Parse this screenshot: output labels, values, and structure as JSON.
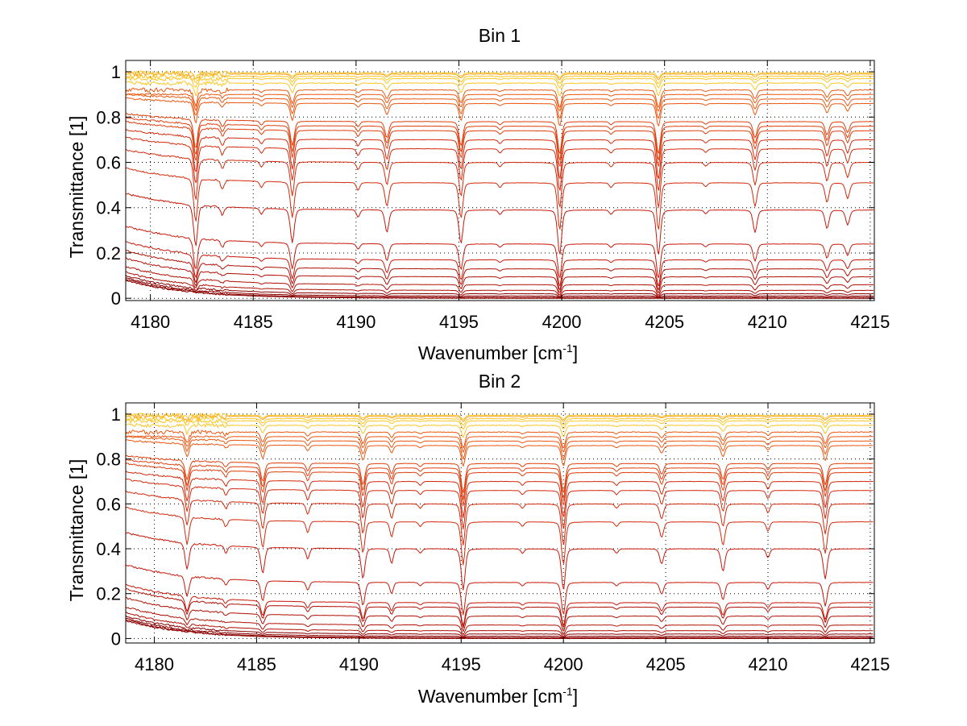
{
  "chart_data": [
    {
      "type": "line",
      "title": "Bin 1",
      "xlabel": "Wavenumber [cm",
      "xlabel_sup": "-1",
      "xlabel_end": "]",
      "ylabel": "Transmittance [1]",
      "xlim": [
        4178.8,
        4215.2
      ],
      "ylim": [
        -0.01,
        1.05
      ],
      "xticks": [
        4180,
        4185,
        4190,
        4195,
        4200,
        4205,
        4210,
        4215
      ],
      "yticks": [
        0,
        0.2,
        0.4,
        0.6,
        0.8,
        1
      ],
      "ytick_labels": [
        "0",
        "0.2",
        "0.4",
        "0.6",
        "0.8",
        "1"
      ],
      "grid": true,
      "series_colors": [
        "#8b0000",
        "#b01005",
        "#c8190a",
        "#d42a0c",
        "#e0400e",
        "#ec5812",
        "#f57a16",
        "#fba21c",
        "#fcc623"
      ],
      "baselines": [
        0.0,
        0.004,
        0.01,
        0.02,
        0.035,
        0.06,
        0.095,
        0.13,
        0.17,
        0.24,
        0.39,
        0.51,
        0.6,
        0.66,
        0.7,
        0.74,
        0.76,
        0.78,
        0.86,
        0.88,
        0.9,
        0.92,
        0.95,
        0.97,
        0.98,
        0.99,
        0.995
      ],
      "absorption_lines": [
        {
          "center": 4182.2,
          "depth": 0.55,
          "width": 0.14
        },
        {
          "center": 4186.9,
          "depth": 0.45,
          "width": 0.14
        },
        {
          "center": 4190.1,
          "depth": 0.1,
          "width": 0.12
        },
        {
          "center": 4191.5,
          "depth": 0.3,
          "width": 0.14
        },
        {
          "center": 4195.1,
          "depth": 0.45,
          "width": 0.14
        },
        {
          "center": 4199.9,
          "depth": 0.6,
          "width": 0.14
        },
        {
          "center": 4204.7,
          "depth": 0.6,
          "width": 0.14
        },
        {
          "center": 4209.4,
          "depth": 0.3,
          "width": 0.14
        },
        {
          "center": 4212.9,
          "depth": 0.25,
          "width": 0.14
        },
        {
          "center": 4213.9,
          "depth": 0.2,
          "width": 0.14
        },
        {
          "center": 4183.5,
          "depth": 0.12,
          "width": 0.12
        },
        {
          "center": 4185.4,
          "depth": 0.08,
          "width": 0.12
        },
        {
          "center": 4197.0,
          "depth": 0.06,
          "width": 0.12
        },
        {
          "center": 4202.4,
          "depth": 0.06,
          "width": 0.12
        },
        {
          "center": 4207.0,
          "depth": 0.05,
          "width": 0.12
        }
      ]
    },
    {
      "type": "line",
      "title": "Bin 2",
      "xlabel": "Wavenumber [cm",
      "xlabel_sup": "-1",
      "xlabel_end": "]",
      "ylabel": "Transmittance [1]",
      "xlim": [
        4178.6,
        4215.2
      ],
      "ylim": [
        -0.02,
        1.05
      ],
      "xticks": [
        4180,
        4185,
        4190,
        4195,
        4200,
        4205,
        4210,
        4215
      ],
      "yticks": [
        0,
        0.2,
        0.4,
        0.6,
        0.8,
        1
      ],
      "ytick_labels": [
        "0",
        "0.2",
        "0.4",
        "0.6",
        "0.8",
        "1"
      ],
      "grid": true,
      "series_colors": [
        "#8b0000",
        "#b01005",
        "#c8190a",
        "#d42a0c",
        "#e0400e",
        "#ec5812",
        "#f57a16",
        "#fba21c",
        "#fcc623"
      ],
      "baselines": [
        0.0,
        0.004,
        0.01,
        0.02,
        0.035,
        0.06,
        0.1,
        0.14,
        0.16,
        0.25,
        0.4,
        0.52,
        0.6,
        0.66,
        0.7,
        0.74,
        0.76,
        0.78,
        0.86,
        0.88,
        0.9,
        0.92,
        0.95,
        0.97,
        0.98,
        0.99,
        0.995
      ],
      "absorption_lines": [
        {
          "center": 4181.6,
          "depth": 0.35,
          "width": 0.14
        },
        {
          "center": 4185.3,
          "depth": 0.35,
          "width": 0.14
        },
        {
          "center": 4187.5,
          "depth": 0.15,
          "width": 0.12
        },
        {
          "center": 4190.2,
          "depth": 0.4,
          "width": 0.14
        },
        {
          "center": 4191.6,
          "depth": 0.2,
          "width": 0.12
        },
        {
          "center": 4195.1,
          "depth": 0.55,
          "width": 0.14
        },
        {
          "center": 4200.0,
          "depth": 0.55,
          "width": 0.14
        },
        {
          "center": 4204.8,
          "depth": 0.2,
          "width": 0.14
        },
        {
          "center": 4207.8,
          "depth": 0.3,
          "width": 0.14
        },
        {
          "center": 4210.0,
          "depth": 0.12,
          "width": 0.12
        },
        {
          "center": 4212.8,
          "depth": 0.4,
          "width": 0.14
        },
        {
          "center": 4183.5,
          "depth": 0.1,
          "width": 0.12
        },
        {
          "center": 4193.0,
          "depth": 0.06,
          "width": 0.12
        },
        {
          "center": 4198.0,
          "depth": 0.06,
          "width": 0.12
        },
        {
          "center": 4202.6,
          "depth": 0.06,
          "width": 0.12
        }
      ]
    }
  ]
}
